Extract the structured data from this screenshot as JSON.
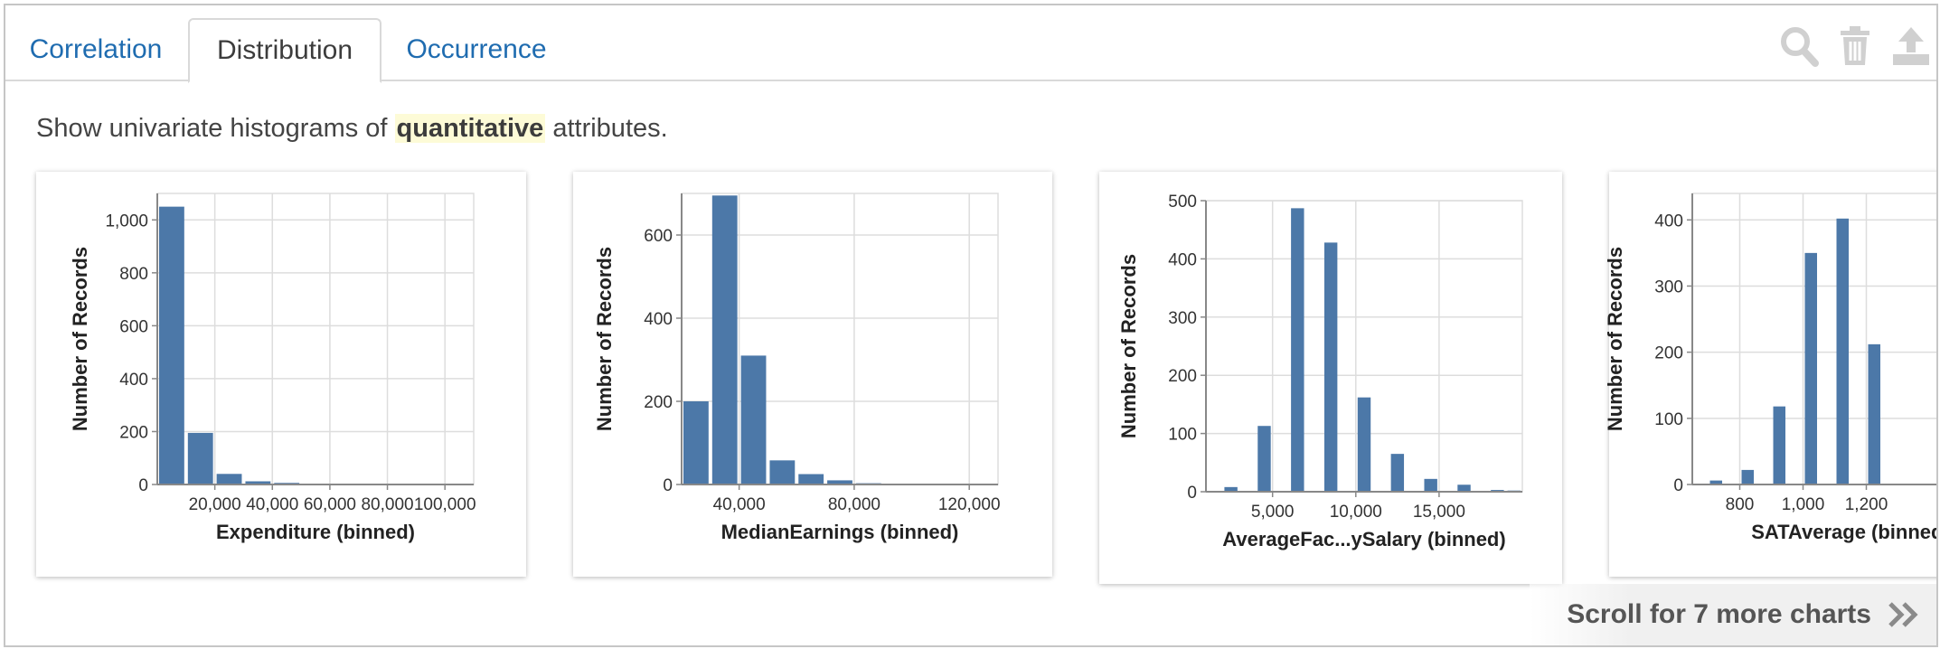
{
  "tabs": [
    {
      "label": "Correlation",
      "active": false
    },
    {
      "label": "Distribution",
      "active": true
    },
    {
      "label": "Occurrence",
      "active": false
    }
  ],
  "toolbar": {
    "icons": [
      "search-icon",
      "trash-icon",
      "upload-icon"
    ],
    "icon_color": "#d0d0d0"
  },
  "description": {
    "before": "Show univariate histograms of ",
    "highlight": "quantitative",
    "after": " attributes."
  },
  "colors": {
    "bar": "#4c78a8",
    "tab_link": "#1f6cb0",
    "grid": "#dddddd",
    "highlight": "#fdfbd7"
  },
  "scroll_hint": {
    "label": "Scroll for 7 more charts"
  },
  "chart_data": [
    {
      "type": "bar",
      "xlabel": "Expenditure (binned)",
      "ylabel": "Number of Records",
      "x_domain": [
        0,
        110000
      ],
      "bin_width": 10000,
      "bin_starts": [
        0,
        10000,
        20000,
        30000,
        40000,
        50000,
        60000,
        70000,
        80000,
        90000,
        100000
      ],
      "values": [
        1050,
        195,
        40,
        12,
        6,
        3,
        2,
        2,
        3,
        2,
        2
      ],
      "x_ticks": [
        20000,
        40000,
        60000,
        80000,
        100000
      ],
      "x_tick_labels": [
        "20,000",
        "40,000",
        "60,000",
        "80,000",
        "100,000"
      ],
      "ylim": [
        0,
        1100
      ],
      "y_ticks": [
        0,
        200,
        400,
        600,
        800,
        1000
      ],
      "y_tick_labels": [
        "0",
        "200",
        "400",
        "600",
        "800",
        "1,000"
      ],
      "grid": true
    },
    {
      "type": "bar",
      "xlabel": "MedianEarnings (binned)",
      "ylabel": "Number of Records",
      "x_domain": [
        20000,
        130000
      ],
      "bin_width": 10000,
      "bin_starts": [
        20000,
        30000,
        40000,
        50000,
        60000,
        70000,
        80000,
        90000,
        100000,
        110000,
        120000
      ],
      "values": [
        200,
        695,
        310,
        58,
        25,
        10,
        3,
        2,
        2,
        2,
        2
      ],
      "x_ticks": [
        40000,
        80000,
        120000
      ],
      "x_tick_labels": [
        "40,000",
        "80,000",
        "120,000"
      ],
      "ylim": [
        0,
        700
      ],
      "y_ticks": [
        0,
        200,
        400,
        600
      ],
      "y_tick_labels": [
        "0",
        "200",
        "400",
        "600"
      ],
      "grid": true
    },
    {
      "type": "bar",
      "xlabel": "AverageFac...ySalary (binned)",
      "ylabel": "Number of Records",
      "x_domain": [
        1000,
        20000
      ],
      "bin_width": 1000,
      "bin_starts": [
        1000,
        2000,
        3000,
        4000,
        5000,
        6000,
        7000,
        8000,
        9000,
        10000,
        11000,
        12000,
        13000,
        14000,
        15000,
        16000,
        17000,
        18000,
        19000
      ],
      "values": [
        0,
        8,
        0,
        113,
        0,
        487,
        0,
        428,
        0,
        162,
        0,
        65,
        0,
        22,
        0,
        12,
        0,
        3,
        2
      ],
      "x_ticks": [
        5000,
        10000,
        15000
      ],
      "x_tick_labels": [
        "5,000",
        "10,000",
        "15,000"
      ],
      "ylim": [
        0,
        500
      ],
      "y_ticks": [
        0,
        100,
        200,
        300,
        400,
        500
      ],
      "y_tick_labels": [
        "0",
        "100",
        "200",
        "300",
        "400",
        "500"
      ],
      "grid": true
    },
    {
      "type": "bar",
      "xlabel": "SATAverage (binned)",
      "ylabel": "Number of Records",
      "x_domain": [
        650,
        1650
      ],
      "bin_width": 50,
      "bin_starts": [
        650,
        700,
        750,
        800,
        850,
        900,
        950,
        1000,
        1050,
        1100,
        1150,
        1200,
        1250
      ],
      "values": [
        0,
        6,
        0,
        22,
        0,
        118,
        0,
        350,
        0,
        402,
        0,
        212,
        0
      ],
      "x_ticks": [
        800,
        1000,
        1200
      ],
      "x_tick_labels": [
        "800",
        "1,000",
        "1,200"
      ],
      "ylim": [
        0,
        440
      ],
      "y_ticks": [
        0,
        100,
        200,
        300,
        400
      ],
      "y_tick_labels": [
        "0",
        "100",
        "200",
        "300",
        "400"
      ],
      "grid": true
    }
  ]
}
